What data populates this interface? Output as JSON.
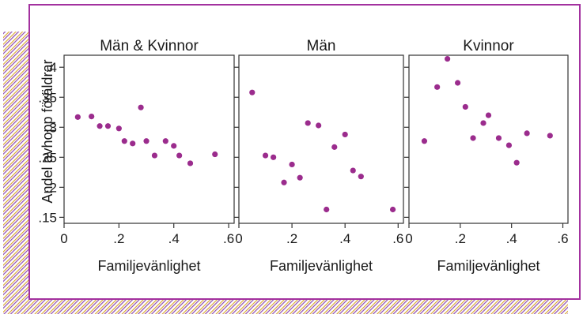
{
  "colors": {
    "frame": "#a3319f",
    "point": "#9b2c8d",
    "hatch_a": "#d9a52c",
    "hatch_b": "#8e4bb1",
    "axis": "#333333"
  },
  "chart_data": [
    {
      "type": "scatter",
      "title": "Män & Kvinnor",
      "xlabel": "Familjevänlighet",
      "ylabel": "Andel avhopp föräldrar",
      "xlim": [
        0,
        0.62
      ],
      "ylim": [
        0.14,
        0.42
      ],
      "x_ticks": [
        "0",
        ".2",
        ".4",
        ".6"
      ],
      "y_ticks": [
        ".15",
        ".2",
        ".25",
        ".3",
        ".35",
        ".4"
      ],
      "points": [
        {
          "x": 0.05,
          "y": 0.317
        },
        {
          "x": 0.1,
          "y": 0.318
        },
        {
          "x": 0.13,
          "y": 0.302
        },
        {
          "x": 0.16,
          "y": 0.302
        },
        {
          "x": 0.2,
          "y": 0.298
        },
        {
          "x": 0.22,
          "y": 0.277
        },
        {
          "x": 0.25,
          "y": 0.273
        },
        {
          "x": 0.28,
          "y": 0.333
        },
        {
          "x": 0.3,
          "y": 0.277
        },
        {
          "x": 0.33,
          "y": 0.253
        },
        {
          "x": 0.37,
          "y": 0.277
        },
        {
          "x": 0.4,
          "y": 0.269
        },
        {
          "x": 0.42,
          "y": 0.253
        },
        {
          "x": 0.46,
          "y": 0.24
        },
        {
          "x": 0.55,
          "y": 0.255
        }
      ]
    },
    {
      "type": "scatter",
      "title": "Män",
      "xlabel": "Familjevänlighet",
      "xlim": [
        0,
        0.62
      ],
      "ylim": [
        0.14,
        0.42
      ],
      "x_ticks": [
        "0",
        ".2",
        ".4",
        ".6"
      ],
      "points": [
        {
          "x": 0.05,
          "y": 0.358
        },
        {
          "x": 0.1,
          "y": 0.253
        },
        {
          "x": 0.13,
          "y": 0.25
        },
        {
          "x": 0.17,
          "y": 0.208
        },
        {
          "x": 0.2,
          "y": 0.238
        },
        {
          "x": 0.23,
          "y": 0.216
        },
        {
          "x": 0.26,
          "y": 0.307
        },
        {
          "x": 0.3,
          "y": 0.303
        },
        {
          "x": 0.33,
          "y": 0.163
        },
        {
          "x": 0.36,
          "y": 0.267
        },
        {
          "x": 0.4,
          "y": 0.288
        },
        {
          "x": 0.43,
          "y": 0.228
        },
        {
          "x": 0.46,
          "y": 0.218
        },
        {
          "x": 0.58,
          "y": 0.163
        }
      ]
    },
    {
      "type": "scatter",
      "title": "Kvinnor",
      "xlabel": "Familjevänlighet",
      "xlim": [
        0,
        0.62
      ],
      "ylim": [
        0.14,
        0.42
      ],
      "x_ticks": [
        "0",
        ".2",
        ".4",
        ".6"
      ],
      "points": [
        {
          "x": 0.06,
          "y": 0.277
        },
        {
          "x": 0.11,
          "y": 0.367
        },
        {
          "x": 0.15,
          "y": 0.414
        },
        {
          "x": 0.19,
          "y": 0.374
        },
        {
          "x": 0.22,
          "y": 0.334
        },
        {
          "x": 0.25,
          "y": 0.282
        },
        {
          "x": 0.29,
          "y": 0.307
        },
        {
          "x": 0.31,
          "y": 0.32
        },
        {
          "x": 0.35,
          "y": 0.282
        },
        {
          "x": 0.39,
          "y": 0.27
        },
        {
          "x": 0.42,
          "y": 0.241
        },
        {
          "x": 0.46,
          "y": 0.29
        },
        {
          "x": 0.55,
          "y": 0.286
        }
      ]
    }
  ]
}
